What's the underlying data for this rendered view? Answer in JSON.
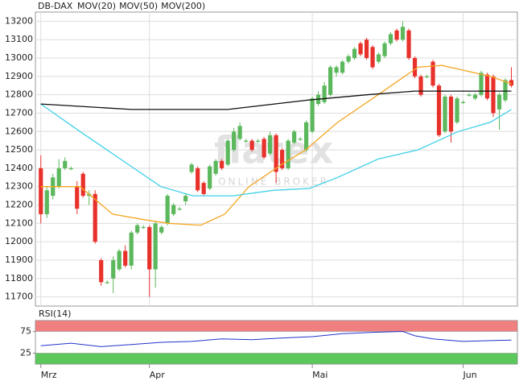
{
  "chart_data": [
    {
      "type": "candlestick",
      "name": "DB-DAX",
      "up_color": "#5cb85c",
      "down_color": "#e8312b",
      "name_color": "#e8312b",
      "watermark": [
        "flatex",
        "ONLINE BROKER"
      ],
      "open": [
        12400,
        12150,
        12250,
        12300,
        12400,
        12400,
        12300,
        12370,
        12250,
        12260,
        11900,
        11780,
        11800,
        11850,
        11950,
        11870,
        12050,
        12080,
        12080,
        11850,
        12050,
        12100,
        12150,
        12180,
        12220,
        12380,
        12400,
        12320,
        12290,
        12370,
        12440,
        12420,
        12500,
        12560,
        12550,
        12550,
        12550,
        12560,
        12480,
        12580,
        12500,
        12400,
        12540,
        12560,
        12500,
        12600,
        12750,
        12760,
        12800,
        12920,
        12920,
        12980,
        13000,
        13080,
        13100,
        13060,
        12980,
        13010,
        13080,
        13150,
        13100,
        13150,
        13000,
        12900,
        12900,
        12980,
        12850,
        12600,
        12790,
        12650,
        12760,
        12800,
        12780,
        12800,
        12910,
        12900,
        12720,
        12770,
        12880
      ],
      "high": [
        12470,
        12300,
        12370,
        12450,
        12460,
        12410,
        12330,
        12380,
        12280,
        12280,
        11910,
        11790,
        11920,
        11960,
        11980,
        12060,
        12100,
        12090,
        12090,
        12110,
        12090,
        12260,
        12210,
        12190,
        12260,
        12430,
        12410,
        12330,
        12420,
        12450,
        12450,
        12560,
        12620,
        12650,
        12560,
        12560,
        12560,
        12570,
        12600,
        12590,
        12510,
        12560,
        12610,
        12570,
        12660,
        12790,
        12820,
        12870,
        12960,
        12960,
        12990,
        13020,
        13060,
        13090,
        13110,
        13070,
        13030,
        13090,
        13140,
        13160,
        13200,
        13160,
        13010,
        12910,
        12910,
        12990,
        12860,
        12800,
        12800,
        12790,
        12770,
        12810,
        12810,
        12930,
        12920,
        12910,
        12810,
        12890,
        12950
      ],
      "low": [
        12100,
        12130,
        12230,
        12290,
        12390,
        12390,
        12150,
        12240,
        12200,
        11990,
        11760,
        11770,
        11720,
        11840,
        11860,
        11850,
        12040,
        12070,
        11700,
        11750,
        12040,
        12090,
        12140,
        12170,
        12200,
        12370,
        12270,
        12250,
        12280,
        12360,
        12390,
        12410,
        12490,
        12550,
        12540,
        12490,
        12540,
        12450,
        12470,
        12320,
        12390,
        12390,
        12530,
        12550,
        12490,
        12590,
        12740,
        12750,
        12790,
        12900,
        12910,
        12970,
        12990,
        13010,
        12990,
        12940,
        12970,
        13000,
        13070,
        13090,
        13090,
        12990,
        12890,
        12790,
        12890,
        12840,
        12570,
        12590,
        12540,
        12640,
        12750,
        12790,
        12770,
        12790,
        12770,
        12680,
        12610,
        12760,
        12840
      ],
      "close": [
        12150,
        12280,
        12350,
        12400,
        12440,
        12400,
        12180,
        12250,
        12260,
        12000,
        11780,
        11780,
        11900,
        11950,
        11870,
        12050,
        12090,
        12080,
        11850,
        12100,
        12080,
        12250,
        12200,
        12180,
        12250,
        12420,
        12280,
        12260,
        12410,
        12440,
        12400,
        12550,
        12600,
        12630,
        12550,
        12500,
        12550,
        12460,
        12580,
        12380,
        12400,
        12550,
        12600,
        12560,
        12650,
        12780,
        12800,
        12850,
        12950,
        12950,
        12980,
        13010,
        13050,
        13020,
        13000,
        12950,
        13020,
        13080,
        13130,
        13100,
        13170,
        13000,
        12900,
        12800,
        12900,
        12850,
        12580,
        12790,
        12600,
        12780,
        12760,
        12800,
        12800,
        12920,
        12780,
        12700,
        12800,
        12880,
        12850
      ],
      "series": [
        {
          "name": "MOV(20)",
          "color": "#f5a623",
          "x": [
            0,
            6.5,
            11.9,
            17.2,
            21.2,
            26.5,
            30.5,
            34.5,
            39.9,
            43.9,
            49.2,
            55.9,
            62.5,
            66.5,
            70.5,
            74.5,
            78
          ],
          "values": [
            12300,
            12300,
            12150,
            12120,
            12100,
            12090,
            12150,
            12300,
            12420,
            12500,
            12650,
            12800,
            12950,
            12960,
            12930,
            12900,
            12860
          ]
        },
        {
          "name": "MOV(50)",
          "color": "#3fd0e8",
          "x": [
            0,
            6.5,
            13.2,
            19.9,
            25.2,
            31.9,
            38.5,
            44.5,
            49.2,
            55.9,
            62.5,
            69.2,
            74.5,
            78
          ],
          "values": [
            12750,
            12600,
            12450,
            12300,
            12250,
            12250,
            12280,
            12290,
            12350,
            12450,
            12500,
            12600,
            12650,
            12720
          ]
        },
        {
          "name": "MOV(200)",
          "color": "#111111",
          "x": [
            0,
            15,
            31,
            44,
            54,
            62,
            78
          ],
          "values": [
            12750,
            12720,
            12720,
            12770,
            12800,
            12820,
            12820
          ]
        }
      ],
      "xlim": [
        -0.9,
        79
      ],
      "ylim": [
        11650,
        13250
      ],
      "yticks": [
        11700,
        11800,
        11900,
        12000,
        12100,
        12200,
        12300,
        12400,
        12500,
        12600,
        12700,
        12800,
        12900,
        13000,
        13100,
        13200
      ],
      "grid": true
    },
    {
      "type": "line",
      "title": "RSI(14)",
      "series": [
        {
          "name": "RSI(14)",
          "color": "#2233cc",
          "x": [
            0,
            5,
            10,
            15,
            20,
            25,
            30,
            35,
            40,
            45,
            50,
            55,
            60,
            62,
            65,
            70,
            75,
            78
          ],
          "values": [
            42,
            48,
            40,
            45,
            50,
            52,
            58,
            56,
            60,
            63,
            70,
            73,
            75,
            65,
            58,
            52,
            54,
            55
          ]
        }
      ],
      "upper_band": {
        "from": 75,
        "to": 100,
        "color": "#f08080"
      },
      "lower_band": {
        "from": 0,
        "to": 25,
        "color": "#5cc85c"
      },
      "xlim": [
        -0.9,
        79
      ],
      "ylim": [
        0,
        100
      ],
      "yticks": [
        25,
        75
      ],
      "xticks": [
        {
          "value": 0,
          "label": "Mrz"
        },
        {
          "value": 18,
          "label": "Apr"
        },
        {
          "value": 45,
          "label": "Mai"
        },
        {
          "value": 70,
          "label": "Jun"
        }
      ]
    }
  ]
}
